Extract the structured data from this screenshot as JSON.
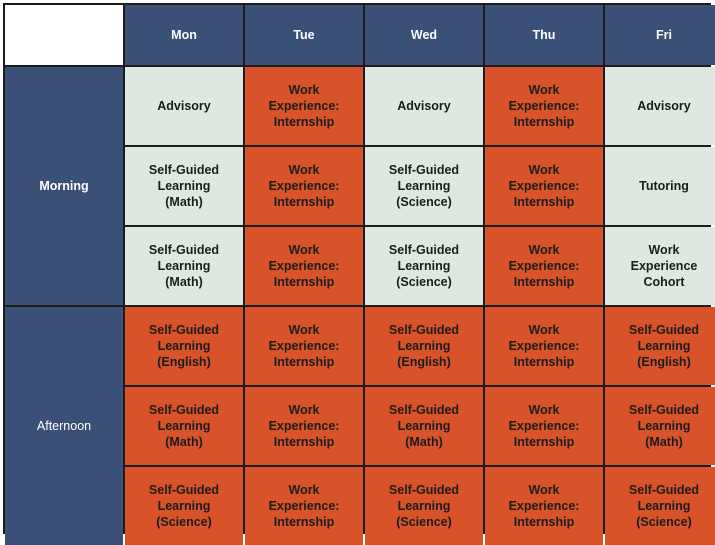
{
  "corner_label": "",
  "days": [
    "Mon",
    "Tue",
    "Wed",
    "Thu",
    "Fri"
  ],
  "periods": {
    "morning": "Morning",
    "afternoon": "Afternoon"
  },
  "colors": {
    "header_bg": "#3b5076",
    "morning_activity_bg": "#dde8e1",
    "highlight_bg": "#d9532a"
  },
  "rows": [
    [
      {
        "text": "Advisory",
        "style": "light"
      },
      {
        "text": "Work\nExperience:\nInternship",
        "style": "orange"
      },
      {
        "text": "Advisory",
        "style": "light"
      },
      {
        "text": "Work\nExperience:\nInternship",
        "style": "orange"
      },
      {
        "text": "Advisory",
        "style": "light"
      }
    ],
    [
      {
        "text": "Self-Guided\nLearning\n(Math)",
        "style": "light"
      },
      {
        "text": "Work\nExperience:\nInternship",
        "style": "orange"
      },
      {
        "text": "Self-Guided\nLearning\n(Science)",
        "style": "light"
      },
      {
        "text": "Work\nExperience:\nInternship",
        "style": "orange"
      },
      {
        "text": "Tutoring",
        "style": "light"
      }
    ],
    [
      {
        "text": "Self-Guided\nLearning\n(Math)",
        "style": "light"
      },
      {
        "text": "Work\nExperience:\nInternship",
        "style": "orange"
      },
      {
        "text": "Self-Guided\nLearning\n(Science)",
        "style": "light"
      },
      {
        "text": "Work\nExperience:\nInternship",
        "style": "orange"
      },
      {
        "text": "Work\nExperience\nCohort",
        "style": "light"
      }
    ],
    [
      {
        "text": "Self-Guided\nLearning\n(English)",
        "style": "orange"
      },
      {
        "text": "Work\nExperience:\nInternship",
        "style": "orange"
      },
      {
        "text": "Self-Guided\nLearning\n(English)",
        "style": "orange"
      },
      {
        "text": "Work\nExperience:\nInternship",
        "style": "orange"
      },
      {
        "text": "Self-Guided\nLearning\n(English)",
        "style": "orange"
      }
    ],
    [
      {
        "text": "Self-Guided\nLearning\n(Math)",
        "style": "orange"
      },
      {
        "text": "Work\nExperience:\nInternship",
        "style": "orange"
      },
      {
        "text": "Self-Guided\nLearning\n(Math)",
        "style": "orange"
      },
      {
        "text": "Work\nExperience:\nInternship",
        "style": "orange"
      },
      {
        "text": "Self-Guided\nLearning\n(Math)",
        "style": "orange"
      }
    ],
    [
      {
        "text": "Self-Guided\nLearning\n(Science)",
        "style": "orange"
      },
      {
        "text": "Work\nExperience:\nInternship",
        "style": "orange"
      },
      {
        "text": "Self-Guided\nLearning\n(Science)",
        "style": "orange"
      },
      {
        "text": "Work\nExperience:\nInternship",
        "style": "orange"
      },
      {
        "text": "Self-Guided\nLearning\n(Science)",
        "style": "orange"
      }
    ]
  ]
}
